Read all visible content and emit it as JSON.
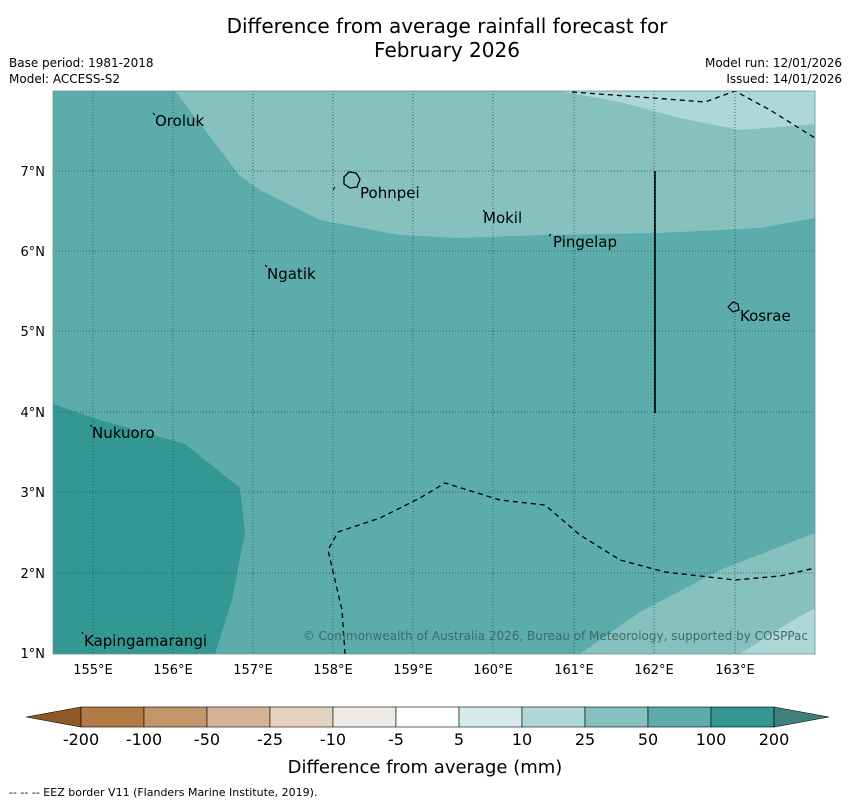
{
  "title": {
    "line1": "Difference from average rainfall forecast for",
    "line2": "February 2026"
  },
  "meta": {
    "base_period": "Base period: 1981-2018",
    "model": "Model: ACCESS-S2",
    "model_run": "Model run: 12/01/2026",
    "issued": "Issued: 14/01/2026"
  },
  "map": {
    "x_ticks": [
      "155°E",
      "156°E",
      "157°E",
      "158°E",
      "159°E",
      "160°E",
      "161°E",
      "162°E",
      "163°E"
    ],
    "y_ticks": [
      "7°N",
      "6°N",
      "5°N",
      "4°N",
      "3°N",
      "2°N",
      "1°N"
    ],
    "places": [
      {
        "name": "Oroluk"
      },
      {
        "name": "Pohnpei"
      },
      {
        "name": "Mokil"
      },
      {
        "name": "Pingelap"
      },
      {
        "name": "Ngatik"
      },
      {
        "name": "Kosrae"
      },
      {
        "name": "Nukuoro"
      },
      {
        "name": "Kapingamarangi"
      }
    ],
    "copyright": "© Commonwealth of Australia 2026, Bureau of Meteorology, supported by COSPPac"
  },
  "colorbar": {
    "ticks": [
      "-200",
      "-100",
      "-50",
      "-25",
      "-10",
      "-5",
      "5",
      "10",
      "25",
      "50",
      "100",
      "200"
    ],
    "colors": [
      "#8c5a27",
      "#b07a45",
      "#c2956b",
      "#d5b396",
      "#e5d3c2",
      "#eeebe6",
      "#ffffff",
      "#d4ebea",
      "#add8d7",
      "#86c1c0",
      "#5bacab",
      "#339794",
      "#3f7f7c"
    ],
    "label": "Difference from average (mm)"
  },
  "legend_note": "--  --  -- EEZ border V11 (Flanders Marine Institute, 2019)."
}
